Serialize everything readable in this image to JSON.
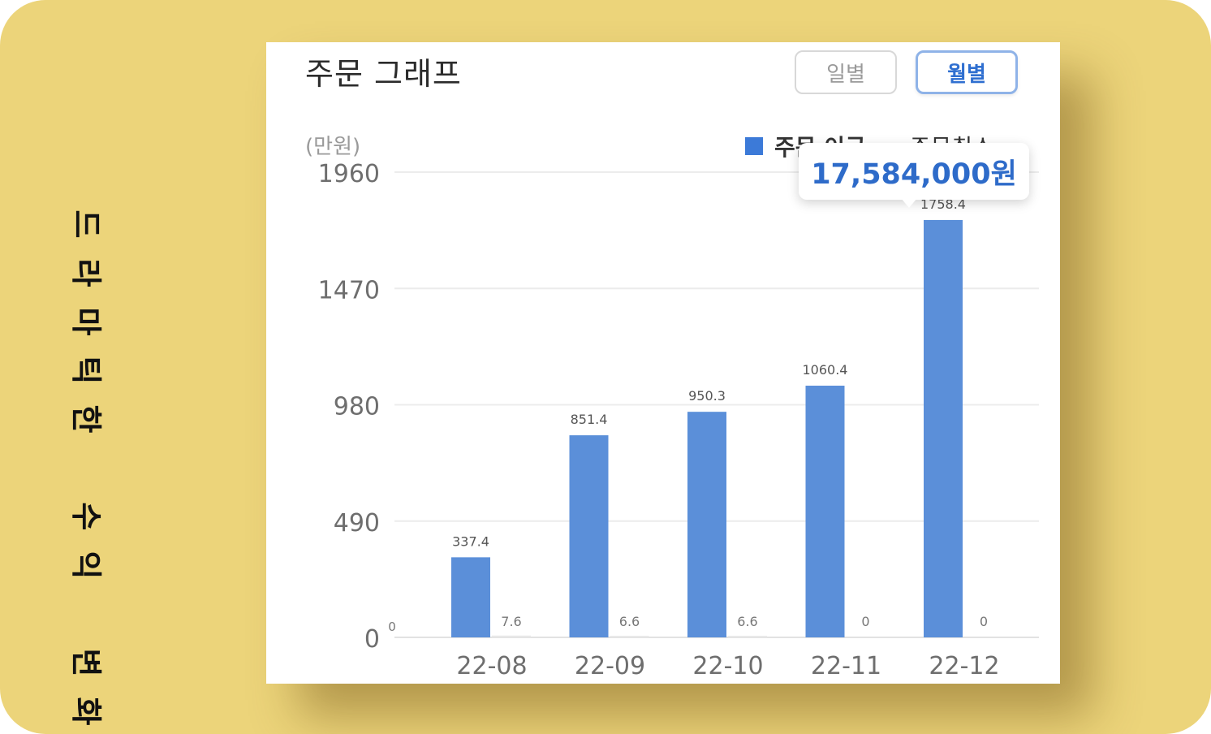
{
  "side_caption": "드라마틱한 수익 변화",
  "card": {
    "title": "주문 그래프",
    "toggle_daily": "일별",
    "toggle_monthly": "월별",
    "unit_label": "(만원)",
    "legend_series_1": "주문 이금",
    "legend_series_2": "주문취소",
    "tooltip_value": "17,584,000원"
  },
  "colors": {
    "background": "#ecd47a",
    "bar": "#5b8fd9",
    "accent": "#2f6fd0"
  },
  "chart_data": {
    "type": "bar",
    "categories": [
      "22-08",
      "22-09",
      "22-10",
      "22-11",
      "22-12"
    ],
    "series": [
      {
        "name": "주문 이금",
        "values": [
          337.4,
          851.4,
          950.3,
          1060.4,
          1758.4
        ]
      },
      {
        "name": "주문취소",
        "values": [
          7.6,
          6.6,
          6.6,
          0,
          0
        ]
      }
    ],
    "y_ticks": [
      0,
      490,
      980,
      1470,
      1960
    ],
    "ylim": [
      0,
      1960
    ],
    "ylabel": "(만원)",
    "grid": true,
    "leading_zero_label": "0"
  }
}
